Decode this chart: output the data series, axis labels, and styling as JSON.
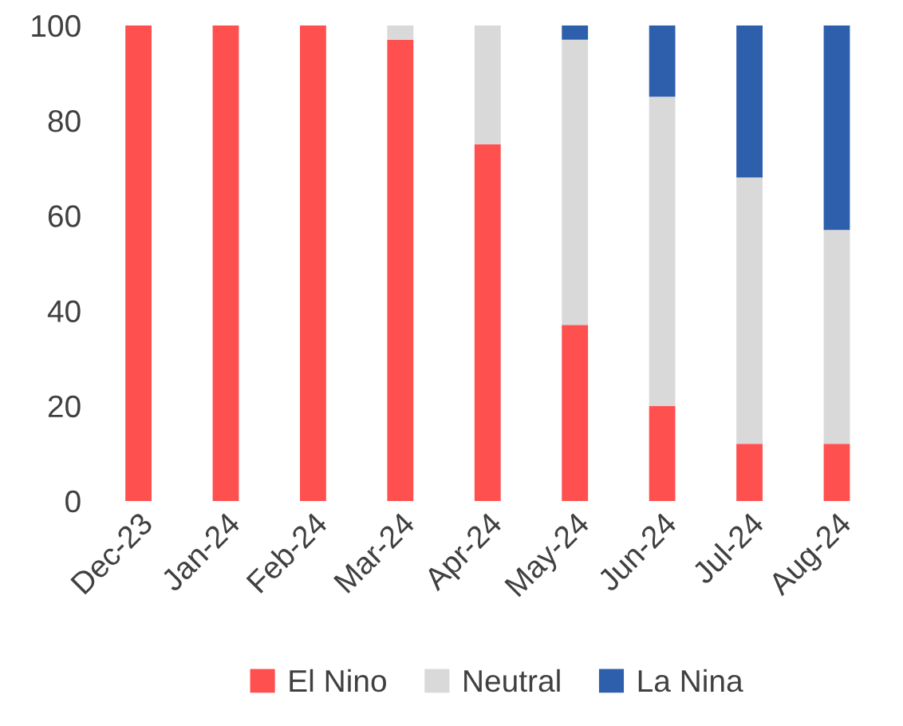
{
  "chart_data": {
    "type": "bar",
    "stacked": true,
    "categories": [
      "Dec-23",
      "Jan-24",
      "Feb-24",
      "Mar-24",
      "Apr-24",
      "May-24",
      "Jun-24",
      "Jul-24",
      "Aug-24"
    ],
    "series": [
      {
        "name": "El Nino",
        "color": "#ff5050",
        "values": [
          100,
          100,
          100,
          97,
          75,
          37,
          20,
          12,
          12
        ]
      },
      {
        "name": "Neutral",
        "color": "#d9d9d9",
        "values": [
          0,
          0,
          0,
          3,
          25,
          60,
          65,
          56,
          45
        ]
      },
      {
        "name": "La Nina",
        "color": "#2e5fac",
        "values": [
          0,
          0,
          0,
          0,
          0,
          3,
          15,
          32,
          43
        ]
      }
    ],
    "ylim": [
      0,
      100
    ],
    "yticks": [
      0,
      20,
      40,
      60,
      80,
      100
    ],
    "grid": false,
    "legend": "bottom"
  }
}
